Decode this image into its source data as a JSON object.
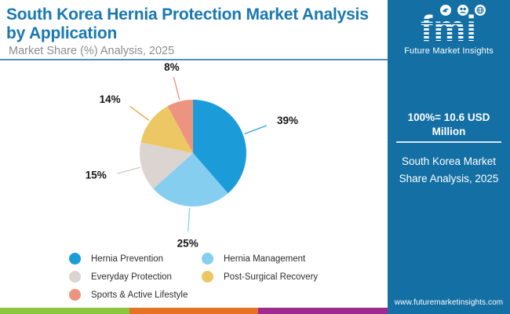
{
  "header": {
    "title": "South Korea Hernia Protection Market Analysis by Application",
    "subtitle": "Market Share (%) Analysis, 2025",
    "title_color": "#1878B2",
    "divider_color": "#4E90CA"
  },
  "chart_data": {
    "type": "pie",
    "title": "South Korea Hernia Protection Market Analysis by Application",
    "subtitle": "Market Share (%) Analysis, 2025",
    "unit": "%",
    "labels": [
      "Hernia Prevention",
      "Hernia Management",
      "Everyday Protection",
      "Post-Surgical Recovery",
      "Sports & Active Lifestyle"
    ],
    "values": [
      39,
      25,
      15,
      14,
      8
    ],
    "data_labels": [
      "39%",
      "25%",
      "15%",
      "14%",
      "8%"
    ],
    "colors": [
      "#1B9CD9",
      "#85CEF0",
      "#DCD4D1",
      "#ECC763",
      "#EC9480"
    ],
    "leader_line_colors": [
      "#2FA3DC",
      "#85CEF0",
      "#CFC7C4",
      "#E5A33F",
      "#EB8E7B"
    ],
    "start_angle_deg": 0,
    "direction": "clockwise",
    "legend_position": "bottom-left",
    "total_note": "100% = 10.6 USD Million"
  },
  "sidebar": {
    "background": "#1470A4",
    "brand": {
      "logo_text": "fmi",
      "tagline": "Future Market Insights",
      "icons": [
        "dove-icon",
        "community-icon",
        "globe-icon"
      ]
    },
    "stat_line": "100%=  10.6 USD Million",
    "description": "South Korea Market Share Analysis, 2025",
    "website": "www.futuremarketinsights.com"
  },
  "footer_bar": {
    "colors": [
      "#8CC540",
      "#E57225",
      "#A02B8F"
    ]
  }
}
